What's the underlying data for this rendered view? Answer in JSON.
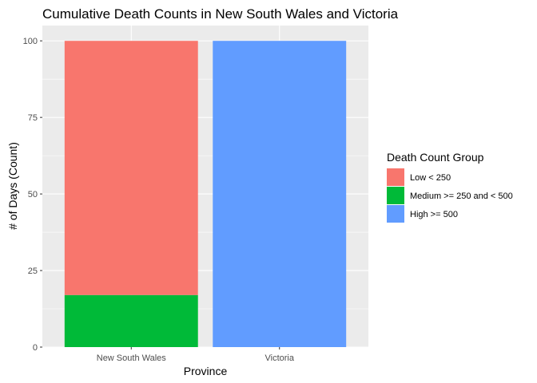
{
  "chart_data": {
    "type": "bar",
    "stacked": true,
    "title": "Cumulative Death Counts in New South Wales and Victoria",
    "xlabel": "Province",
    "ylabel": "# of Days (Count)",
    "categories": [
      "New South Wales",
      "Victoria"
    ],
    "series": [
      {
        "name": "Low < 250",
        "values": [
          83,
          0
        ],
        "color": "#F8766D"
      },
      {
        "name": "Medium >= 250 and < 500",
        "values": [
          17,
          0
        ],
        "color": "#00BA38"
      },
      {
        "name": "High >= 500",
        "values": [
          0,
          100
        ],
        "color": "#619CFF"
      }
    ],
    "stack_order_bottom_to_top": [
      "High >= 500",
      "Medium >= 250 and < 500",
      "Low < 250"
    ],
    "ylim": [
      0,
      105
    ],
    "yticks": [
      0,
      25,
      50,
      75,
      100
    ],
    "grid": true,
    "legend": {
      "title": "Death Count Group",
      "placement": "right"
    },
    "panel_background": "#EBEBEB",
    "grid_color": "#FFFFFF"
  }
}
